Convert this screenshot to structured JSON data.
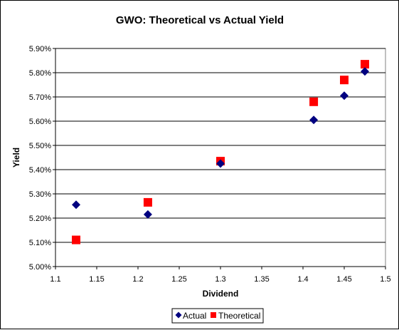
{
  "chart_data": {
    "type": "scatter",
    "title": "GWO: Theoretical vs Actual Yield",
    "xlabel": "Dividend",
    "ylabel": "Yield",
    "xlim": [
      1.1,
      1.5
    ],
    "ylim": [
      0.05,
      0.059
    ],
    "x_ticks": [
      "1.1",
      "1.15",
      "1.2",
      "1.25",
      "1.3",
      "1.35",
      "1.4",
      "1.45",
      "1.5"
    ],
    "y_ticks": [
      "5.00%",
      "5.10%",
      "5.20%",
      "5.30%",
      "5.40%",
      "5.50%",
      "5.60%",
      "5.70%",
      "5.80%",
      "5.90%"
    ],
    "grid": "horizontal",
    "legend_position": "bottom",
    "series": [
      {
        "name": "Actual",
        "marker": "diamond",
        "color": "#000080",
        "x": [
          1.125,
          1.212,
          1.3,
          1.413,
          1.45,
          1.475
        ],
        "y": [
          0.05255,
          0.05215,
          0.05425,
          0.05605,
          0.05705,
          0.05805
        ]
      },
      {
        "name": "Theoretical",
        "marker": "square",
        "color": "#ff0000",
        "x": [
          1.125,
          1.212,
          1.3,
          1.413,
          1.45,
          1.475
        ],
        "y": [
          0.0511,
          0.05265,
          0.05435,
          0.0568,
          0.0577,
          0.05835
        ]
      }
    ]
  }
}
